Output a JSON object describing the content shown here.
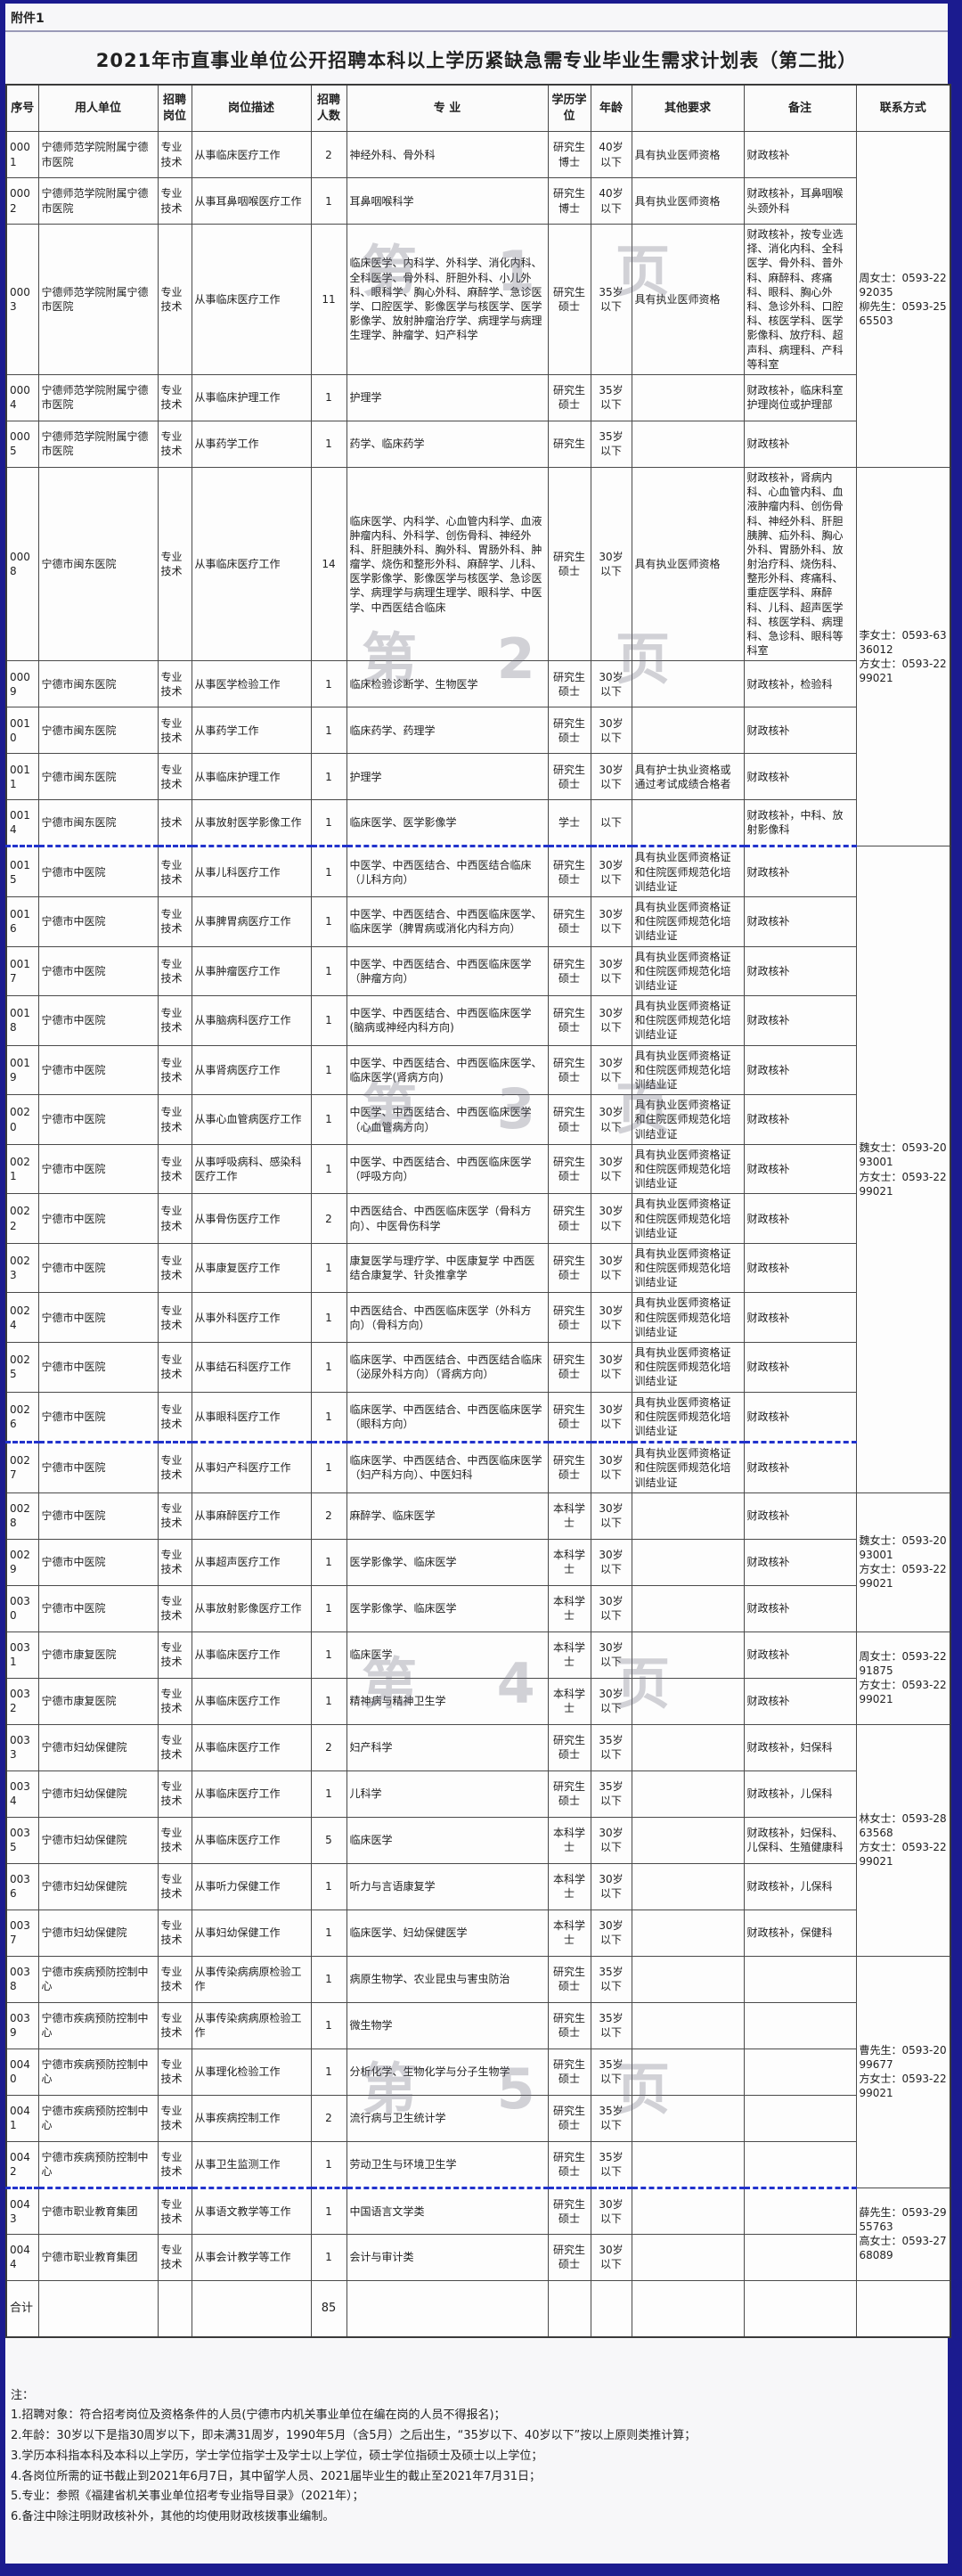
{
  "page": {
    "attachment": "附件1",
    "title": "2021年市直事业单位公开招聘本科以上学历紧缺急需专业毕业生需求计划表（第二批）"
  },
  "table": {
    "headers": [
      "序号",
      "用人单位",
      "招聘岗位",
      "岗位描述",
      "招聘人数",
      "专  业",
      "学历学位",
      "年龄",
      "其他要求",
      "备注",
      "联系方式"
    ],
    "rows": [
      {
        "id": "0001",
        "unit": "宁德师范学院附属宁德市医院",
        "post": "专业技术",
        "duty": "从事临床医疗工作",
        "count": "2",
        "major": "神经外科、骨外科",
        "degree": "研究生博士",
        "age": "40岁以下",
        "other": "具有执业医师资格",
        "note": "财政核补",
        "contact": {
          "span": 5,
          "text": "周女士：0593-2292035\n柳先生：0593-2565503"
        }
      },
      {
        "id": "0002",
        "unit": "宁德师范学院附属宁德市医院",
        "post": "专业技术",
        "duty": "从事耳鼻咽喉医疗工作",
        "count": "1",
        "major": "耳鼻咽喉科学",
        "degree": "研究生博士",
        "age": "40岁以下",
        "other": "具有执业医师资格",
        "note": "财政核补，耳鼻咽喉头颈外科"
      },
      {
        "id": "0003",
        "unit": "宁德师范学院附属宁德市医院",
        "post": "专业技术",
        "duty": "从事临床医疗工作",
        "count": "11",
        "major": "临床医学、内科学、外科学、消化内科、全科医学、骨外科、肝胆外科、小儿外科、眼科学、胸心外科、麻醉学、急诊医学、口腔医学、影像医学与核医学、医学影像学、放射肿瘤治疗学、病理学与病理生理学、肿瘤学、妇产科学",
        "degree": "研究生硕士",
        "age": "35岁以下",
        "other": "具有执业医师资格",
        "note": "财政核补，按专业选择、消化内科、全科医学、骨外科、普外科、麻醉科、疼痛科、眼科、胸心外科、急诊外科、口腔科、核医学科、医学影像科、放疗科、超声科、病理科、产科等科室"
      },
      {
        "id": "0004",
        "unit": "宁德师范学院附属宁德市医院",
        "post": "专业技术",
        "duty": "从事临床护理工作",
        "count": "1",
        "major": "护理学",
        "degree": "研究生硕士",
        "age": "35岁以下",
        "other": "",
        "note": "财政核补，临床科室护理岗位或护理部"
      },
      {
        "id": "0005",
        "unit": "宁德师范学院附属宁德市医院",
        "post": "专业技术",
        "duty": "从事药学工作",
        "count": "1",
        "major": "药学、临床药学",
        "degree": "研究生",
        "age": "35岁以下",
        "other": "",
        "note": "财政核补"
      },
      {
        "id": "0008",
        "unit": "宁德市闽东医院",
        "post": "专业技术",
        "duty": "从事临床医疗工作",
        "count": "14",
        "major": "临床医学、内科学、心血管内科学、血液肿瘤内科、外科学、创伤骨科、神经外科、肝胆胰外科、胸外科、胃肠外科、肿瘤学、烧伤和整形外科、麻醉学、儿科、医学影像学、影像医学与核医学、急诊医学、病理学与病理生理学、眼科学、中医学、中西医结合临床",
        "degree": "研究生硕士",
        "age": "30岁以下",
        "other": "具有执业医师资格",
        "note": "财政核补，肾病内科、心血管内科、血液肿瘤内科、创伤骨科、神经外科、肝胆胰脾、疝外科、胸心外科、胃肠外科、放射治疗科、烧伤科、整形外科、疼痛科、重症医学科、麻醉科、儿科、超声医学科、核医学科、病理科、急诊科、眼科等科室",
        "contact": {
          "span": 5,
          "text": "李女士：0593-6336012\n方女士：0593-2299021"
        }
      },
      {
        "id": "0009",
        "unit": "宁德市闽东医院",
        "post": "专业技术",
        "duty": "从事医学检验工作",
        "count": "1",
        "major": "临床检验诊断学、生物医学",
        "degree": "研究生硕士",
        "age": "30岁以下",
        "other": "",
        "note": "财政核补，检验科"
      },
      {
        "id": "0010",
        "unit": "宁德市闽东医院",
        "post": "专业技术",
        "duty": "从事药学工作",
        "count": "1",
        "major": "临床药学、药理学",
        "degree": "研究生硕士",
        "age": "30岁以下",
        "other": "",
        "note": "财政核补"
      },
      {
        "id": "0011",
        "unit": "宁德市闽东医院",
        "post": "专业技术",
        "duty": "从事临床护理工作",
        "count": "1",
        "major": "护理学",
        "degree": "研究生硕士",
        "age": "30岁以下",
        "other": "具有护士执业资格或通过考试成绩合格者",
        "note": "财政核补"
      },
      {
        "id": "0014",
        "unit": "宁德市闽东医院",
        "post": "技术",
        "duty": "从事放射医学影像工作",
        "count": "1",
        "major": "临床医学、医学影像学",
        "degree": "学士",
        "age": "以下",
        "other": "",
        "note": "财政核补，中科、放射影像科",
        "seam": true
      },
      {
        "id": "0015",
        "unit": "宁德市中医院",
        "post": "专业技术",
        "duty": "从事儿科医疗工作",
        "count": "1",
        "major": "中医学、中西医结合、中西医结合临床（儿科方向）",
        "degree": "研究生硕士",
        "age": "30岁以下",
        "other": "具有执业医师资格证和住院医师规范化培训结业证",
        "note": "财政核补",
        "contact": {
          "span": 13,
          "text": "魏女士：0593-2093001\n方女士：0593-2299021"
        }
      },
      {
        "id": "0016",
        "unit": "宁德市中医院",
        "post": "专业技术",
        "duty": "从事脾胃病医疗工作",
        "count": "1",
        "major": "中医学、中西医结合、中西医临床医学、临床医学（脾胃病或消化内科方向）",
        "degree": "研究生硕士",
        "age": "30岁以下",
        "other": "具有执业医师资格证和住院医师规范化培训结业证",
        "note": "财政核补"
      },
      {
        "id": "0017",
        "unit": "宁德市中医院",
        "post": "专业技术",
        "duty": "从事肿瘤医疗工作",
        "count": "1",
        "major": "中医学、中西医结合、中西医临床医学（肿瘤方向）",
        "degree": "研究生硕士",
        "age": "30岁以下",
        "other": "具有执业医师资格证和住院医师规范化培训结业证",
        "note": "财政核补"
      },
      {
        "id": "0018",
        "unit": "宁德市中医院",
        "post": "专业技术",
        "duty": "从事脑病科医疗工作",
        "count": "1",
        "major": "中医学、中西医结合、中西医临床医学(脑病或神经内科方向)",
        "degree": "研究生硕士",
        "age": "30岁以下",
        "other": "具有执业医师资格证和住院医师规范化培训结业证",
        "note": "财政核补"
      },
      {
        "id": "0019",
        "unit": "宁德市中医院",
        "post": "专业技术",
        "duty": "从事肾病医疗工作",
        "count": "1",
        "major": "中医学、中西医结合、中西医临床医学、临床医学(肾病方向)",
        "degree": "研究生硕士",
        "age": "30岁以下",
        "other": "具有执业医师资格证和住院医师规范化培训结业证",
        "note": "财政核补"
      },
      {
        "id": "0020",
        "unit": "宁德市中医院",
        "post": "专业技术",
        "duty": "从事心血管病医疗工作",
        "count": "1",
        "major": "中医学、中西医结合、中西医临床医学（心血管病方向）",
        "degree": "研究生硕士",
        "age": "30岁以下",
        "other": "具有执业医师资格证和住院医师规范化培训结业证",
        "note": "财政核补"
      },
      {
        "id": "0021",
        "unit": "宁德市中医院",
        "post": "专业技术",
        "duty": "从事呼吸病科、感染科医疗工作",
        "count": "1",
        "major": "中医学、中西医结合、中西医临床医学（呼吸方向）",
        "degree": "研究生硕士",
        "age": "30岁以下",
        "other": "具有执业医师资格证和住院医师规范化培训结业证",
        "note": "财政核补"
      },
      {
        "id": "0022",
        "unit": "宁德市中医院",
        "post": "专业技术",
        "duty": "从事骨伤医疗工作",
        "count": "2",
        "major": "中西医结合、中西医临床医学（骨科方向）、中医骨伤科学",
        "degree": "研究生硕士",
        "age": "30岁以下",
        "other": "具有执业医师资格证和住院医师规范化培训结业证",
        "note": "财政核补"
      },
      {
        "id": "0023",
        "unit": "宁德市中医院",
        "post": "专业技术",
        "duty": "从事康复医疗工作",
        "count": "1",
        "major": "康复医学与理疗学、中医康复学 中西医结合康复学、针灸推拿学",
        "degree": "研究生硕士",
        "age": "30岁以下",
        "other": "具有执业医师资格证和住院医师规范化培训结业证",
        "note": "财政核补"
      },
      {
        "id": "0024",
        "unit": "宁德市中医院",
        "post": "专业技术",
        "duty": "从事外科医疗工作",
        "count": "1",
        "major": "中西医结合、中西医临床医学（外科方向）（骨科方向）",
        "degree": "研究生硕士",
        "age": "30岁以下",
        "other": "具有执业医师资格证和住院医师规范化培训结业证",
        "note": "财政核补"
      },
      {
        "id": "0025",
        "unit": "宁德市中医院",
        "post": "专业技术",
        "duty": "从事结石科医疗工作",
        "count": "1",
        "major": "临床医学、中西医结合、中西医结合临床（泌尿外科方向）（肾病方向）",
        "degree": "研究生硕士",
        "age": "30岁以下",
        "other": "具有执业医师资格证和住院医师规范化培训结业证",
        "note": "财政核补"
      },
      {
        "id": "0026",
        "unit": "宁德市中医院",
        "post": "专业技术",
        "duty": "从事眼科医疗工作",
        "count": "1",
        "major": "临床医学、中西医结合、中西医临床医学（眼科方向）",
        "degree": "研究生硕士",
        "age": "30岁以下",
        "other": "具有执业医师资格证和住院医师规范化培训结业证",
        "note": "财政核补",
        "seam": true
      },
      {
        "id": "0027",
        "unit": "宁德市中医院",
        "post": "专业技术",
        "duty": "从事妇产科医疗工作",
        "count": "1",
        "major": "临床医学、中西医结合、中西医临床医学（妇产科方向）、中医妇科",
        "degree": "研究生硕士",
        "age": "30岁以下",
        "other": "具有执业医师资格证和住院医师规范化培训结业证",
        "note": "财政核补"
      },
      {
        "id": "0028",
        "unit": "宁德市中医院",
        "post": "专业技术",
        "duty": "从事麻醉医疗工作",
        "count": "2",
        "major": "麻醉学、临床医学",
        "degree": "本科学士",
        "age": "30岁以下",
        "other": "",
        "note": "财政核补",
        "contact": {
          "span": 3,
          "text": "魏女士：0593-2093001\n方女士：0593-2299021"
        }
      },
      {
        "id": "0029",
        "unit": "宁德市中医院",
        "post": "专业技术",
        "duty": "从事超声医疗工作",
        "count": "1",
        "major": "医学影像学、临床医学",
        "degree": "本科学士",
        "age": "30岁以下",
        "other": "",
        "note": "财政核补"
      },
      {
        "id": "0030",
        "unit": "宁德市中医院",
        "post": "专业技术",
        "duty": "从事放射影像医疗工作",
        "count": "1",
        "major": "医学影像学、临床医学",
        "degree": "本科学士",
        "age": "30岁以下",
        "other": "",
        "note": "财政核补"
      },
      {
        "id": "0031",
        "unit": "宁德市康复医院",
        "post": "专业技术",
        "duty": "从事临床医疗工作",
        "count": "1",
        "major": "临床医学",
        "degree": "本科学士",
        "age": "30岁以下",
        "other": "",
        "note": "财政核补",
        "contact": {
          "span": 2,
          "text": "周女士：0593-2291875\n方女士：0593-2299021"
        }
      },
      {
        "id": "0032",
        "unit": "宁德市康复医院",
        "post": "专业技术",
        "duty": "从事临床医疗工作",
        "count": "1",
        "major": "精神病与精神卫生学",
        "degree": "本科学士",
        "age": "30岁以下",
        "other": "",
        "note": "财政核补"
      },
      {
        "id": "0033",
        "unit": "宁德市妇幼保健院",
        "post": "专业技术",
        "duty": "从事临床医疗工作",
        "count": "2",
        "major": "妇产科学",
        "degree": "研究生硕士",
        "age": "35岁以下",
        "other": "",
        "note": "财政核补，妇保科",
        "contact": {
          "span": 5,
          "text": "林女士：0593-2863568\n方女士：0593-2299021"
        }
      },
      {
        "id": "0034",
        "unit": "宁德市妇幼保健院",
        "post": "专业技术",
        "duty": "从事临床医疗工作",
        "count": "1",
        "major": "儿科学",
        "degree": "研究生硕士",
        "age": "35岁以下",
        "other": "",
        "note": "财政核补，儿保科"
      },
      {
        "id": "0035",
        "unit": "宁德市妇幼保健院",
        "post": "专业技术",
        "duty": "从事临床医疗工作",
        "count": "5",
        "major": "临床医学",
        "degree": "本科学士",
        "age": "30岁以下",
        "other": "",
        "note": "财政核补，妇保科、儿保科、生殖健康科"
      },
      {
        "id": "0036",
        "unit": "宁德市妇幼保健院",
        "post": "专业技术",
        "duty": "从事听力保健工作",
        "count": "1",
        "major": "听力与言语康复学",
        "degree": "本科学士",
        "age": "30岁以下",
        "other": "",
        "note": "财政核补，儿保科"
      },
      {
        "id": "0037",
        "unit": "宁德市妇幼保健院",
        "post": "专业技术",
        "duty": "从事妇幼保健工作",
        "count": "1",
        "major": "临床医学、妇幼保健医学",
        "degree": "本科学士",
        "age": "30岁以下",
        "other": "",
        "note": "财政核补，保健科"
      },
      {
        "id": "0038",
        "unit": "宁德市疾病预防控制中心",
        "post": "专业技术",
        "duty": "从事传染病病原检验工作",
        "count": "1",
        "major": "病原生物学、农业昆虫与害虫防治",
        "degree": "研究生硕士",
        "age": "35岁以下",
        "other": "",
        "note": "",
        "contact": {
          "span": 5,
          "text": "曹先生：0593-2099677\n方女士：0593-2299021"
        }
      },
      {
        "id": "0039",
        "unit": "宁德市疾病预防控制中心",
        "post": "专业技术",
        "duty": "从事传染病病原检验工作",
        "count": "1",
        "major": "微生物学",
        "degree": "研究生硕士",
        "age": "35岁以下",
        "other": "",
        "note": ""
      },
      {
        "id": "0040",
        "unit": "宁德市疾病预防控制中心",
        "post": "专业技术",
        "duty": "从事理化检验工作",
        "count": "1",
        "major": "分析化学、生物化学与分子生物学",
        "degree": "研究生硕士",
        "age": "35岁以下",
        "other": "",
        "note": ""
      },
      {
        "id": "0041",
        "unit": "宁德市疾病预防控制中心",
        "post": "专业技术",
        "duty": "从事疾病控制工作",
        "count": "2",
        "major": "流行病与卫生统计学",
        "degree": "研究生硕士",
        "age": "35岁以下",
        "other": "",
        "note": ""
      },
      {
        "id": "0042",
        "unit": "宁德市疾病预防控制中心",
        "post": "专业技术",
        "duty": "从事卫生监测工作",
        "count": "1",
        "major": "劳动卫生与环境卫生学",
        "degree": "研究生硕士",
        "age": "35岁以下",
        "other": "",
        "note": "",
        "seam": true
      },
      {
        "id": "0043",
        "unit": "宁德市职业教育集团",
        "post": "专业技术",
        "duty": "从事语文教学等工作",
        "count": "1",
        "major": "中国语言文学类",
        "degree": "研究生硕士",
        "age": "30岁以下",
        "other": "",
        "note": "",
        "contact": {
          "span": 2,
          "text": "薛先生：0593-2955763\n高女士：0593-2768089"
        }
      },
      {
        "id": "0044",
        "unit": "宁德市职业教育集团",
        "post": "专业技术",
        "duty": "从事会计教学等工作",
        "count": "1",
        "major": "会计与审计类",
        "degree": "研究生硕士",
        "age": "30岁以下",
        "other": "",
        "note": ""
      }
    ],
    "total": {
      "label": "合计",
      "count": "85"
    }
  },
  "watermarks": [
    "第 1 页",
    "第 2 页",
    "第 3 页",
    "第 4 页",
    "第 5 页"
  ],
  "notes": {
    "title": "注：",
    "lines": [
      "1.招聘对象：符合招考岗位及资格条件的人员(宁德市内机关事业单位在编在岗的人员不得报名)；",
      "2.年龄：30岁以下是指30周岁以下，即未满31周岁，1990年5月（含5月）之后出生，“35岁以下、40岁以下”按以上原则类推计算；",
      "3.学历本科指本科及本科以上学历，学士学位指学士及学士以上学位，硕士学位指硕士及硕士以上学位；",
      "4.各岗位所需的证书截止到2021年6月7日，其中留学人员、2021届毕业生的截止至2021年7月31日；",
      "5.专业：参照《福建省机关事业单位招考专业指导目录》（2021年）；",
      "6.备注中除注明财政核补外，其他的均使用财政核拨事业编制。"
    ]
  }
}
